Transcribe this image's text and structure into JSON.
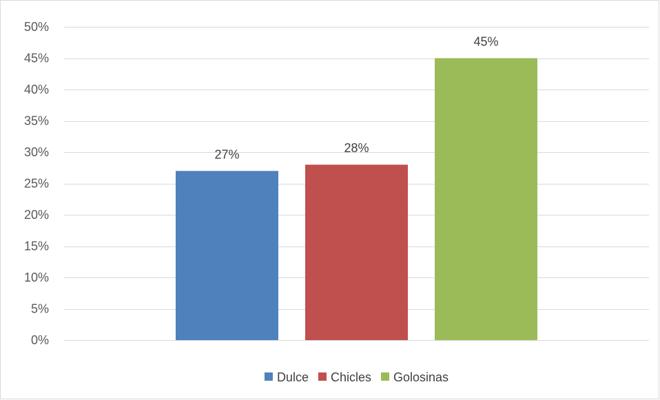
{
  "chart_data": {
    "type": "bar",
    "title": "",
    "xlabel": "",
    "ylabel": "",
    "ylim": [
      0,
      50
    ],
    "y_tick_step": 5,
    "y_tick_suffix": "%",
    "grid": true,
    "legend_position": "bottom",
    "series": [
      {
        "name": "Dulce",
        "value": 27,
        "label": "27%",
        "color": "#4f81bd"
      },
      {
        "name": "Chicles",
        "value": 28,
        "label": "28%",
        "color": "#c0504d"
      },
      {
        "name": "Golosinas",
        "value": 45,
        "label": "45%",
        "color": "#9bbb59"
      }
    ]
  }
}
